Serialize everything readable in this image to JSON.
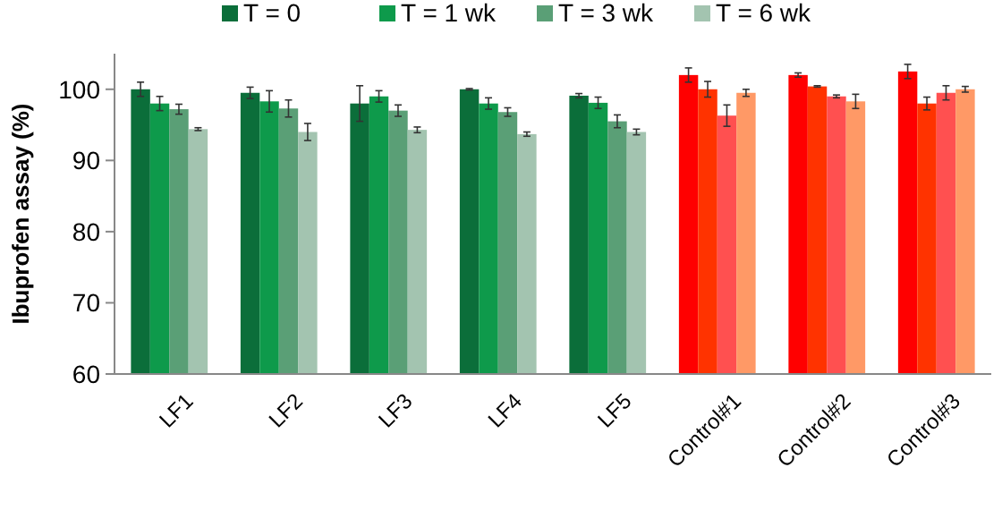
{
  "chart_data": {
    "type": "bar",
    "ylabel": "Ibuprofen assay (%)",
    "categories": [
      "LF1",
      "LF2",
      "LF3",
      "LF4",
      "LF5",
      "Control#1",
      "Control#2",
      "Control#3"
    ],
    "series": [
      {
        "name": "T = 0",
        "color": "#0b6e3a",
        "colors": [
          "#0b6e3a",
          "#0b6e3a",
          "#0b6e3a",
          "#0b6e3a",
          "#0b6e3a",
          "#ff0000",
          "#ff0000",
          "#ff0000"
        ],
        "values": [
          100,
          99.5,
          98,
          100,
          99.1,
          102,
          102,
          102.5
        ],
        "errors": [
          1,
          0.8,
          2.5,
          0.1,
          0.3,
          1,
          0.3,
          1
        ]
      },
      {
        "name": "T = 1 wk",
        "color": "#0e9a4b",
        "colors": [
          "#0e9a4b",
          "#0e9a4b",
          "#0e9a4b",
          "#0e9a4b",
          "#0e9a4b",
          "#ff3300",
          "#ff3300",
          "#ff3300"
        ],
        "values": [
          98,
          98.3,
          99,
          98,
          98.1,
          100,
          100.4,
          98
        ],
        "errors": [
          1,
          1.5,
          0.8,
          0.8,
          0.8,
          1.1,
          0.1,
          0.9
        ]
      },
      {
        "name": "T = 3 wk",
        "color": "#5a9f76",
        "colors": [
          "#5a9f76",
          "#5a9f76",
          "#5a9f76",
          "#5a9f76",
          "#5a9f76",
          "#ff5050",
          "#ff5050",
          "#ff5050"
        ],
        "values": [
          97.2,
          97.3,
          97,
          96.8,
          95.5,
          96.3,
          99,
          99.5
        ],
        "errors": [
          0.7,
          1.2,
          0.8,
          0.6,
          0.9,
          1.5,
          0.2,
          1
        ]
      },
      {
        "name": "T = 6 wk",
        "color": "#a3c4b0",
        "colors": [
          "#a3c4b0",
          "#a3c4b0",
          "#a3c4b0",
          "#a3c4b0",
          "#a3c4b0",
          "#ff9966",
          "#ff9966",
          "#ff9966"
        ],
        "values": [
          94.4,
          94,
          94.3,
          93.7,
          94,
          99.5,
          98.3,
          100
        ],
        "errors": [
          0.2,
          1.2,
          0.4,
          0.3,
          0.4,
          0.5,
          1,
          0.4
        ]
      }
    ],
    "ylim": [
      60,
      105
    ],
    "yticks": [
      60,
      70,
      80,
      90,
      100
    ],
    "grid": false,
    "legend": "top"
  }
}
